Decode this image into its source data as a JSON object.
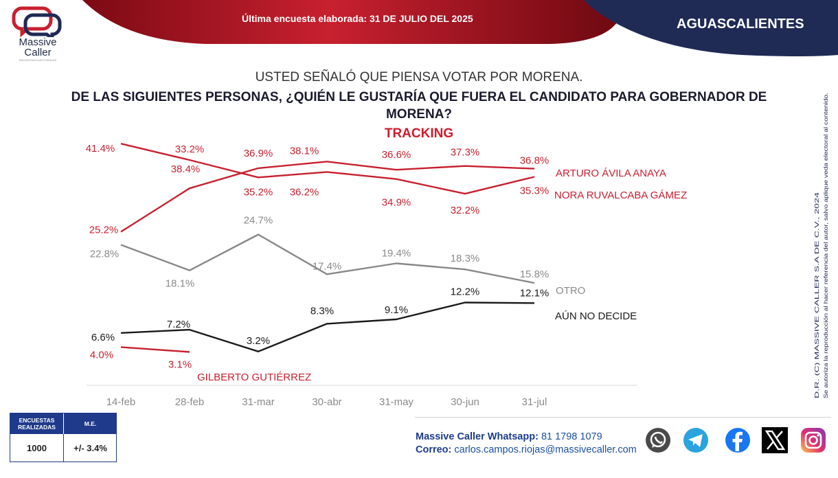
{
  "header": {
    "survey_date_label": "Última encuesta elaborada: 31 DE JULIO DEL 2025",
    "region": "AGUASCALIENTES",
    "brand": "Massive Caller",
    "brand_tagline": "ENCUESTAS ELECTORALES"
  },
  "question": {
    "line1": "USTED SEÑALÓ QUE PIENSA VOTAR POR MORENA.",
    "line2": "DE LAS SIGUIENTES PERSONAS, ¿QUIÉN LE GUSTARÍA QUE FUERA EL CANDIDATO PARA GOBERNADOR DE MORENA?",
    "subtitle": "TRACKING"
  },
  "chart_data": {
    "type": "line",
    "categories": [
      "14-feb",
      "28-feb",
      "31-mar",
      "30-abr",
      "31-may",
      "30-jun",
      "31-jul"
    ],
    "grid": false,
    "legend": "direct labels at line ends",
    "series": [
      {
        "name": "ARTURO ÁVILA ANAYA",
        "color": "#c8202f",
        "values": [
          25.2,
          33.2,
          36.9,
          38.1,
          36.6,
          37.3,
          36.8
        ],
        "labels": [
          "25.2%",
          "33.2%",
          "36.9%",
          "38.1%",
          "36.6%",
          "37.3%",
          "36.8%"
        ]
      },
      {
        "name": "NORA RUVALCABA GÁMEZ",
        "color": "#c8202f",
        "values": [
          41.4,
          38.4,
          35.2,
          36.2,
          34.9,
          32.2,
          35.3
        ],
        "labels": [
          "41.4%",
          "38.4%",
          "35.2%",
          "36.2%",
          "34.9%",
          "32.2%",
          "35.3%"
        ]
      },
      {
        "name": "OTRO",
        "color": "#888888",
        "values": [
          22.8,
          18.1,
          24.7,
          17.4,
          19.4,
          18.3,
          15.8
        ],
        "labels": [
          "22.8%",
          "18.1%",
          "24.7%",
          "17.4%",
          "19.4%",
          "18.3%",
          "15.8%"
        ]
      },
      {
        "name": "AÚN NO DECIDE",
        "color": "#1a1a1a",
        "values": [
          6.6,
          7.2,
          3.2,
          8.3,
          9.1,
          12.2,
          12.1
        ],
        "labels": [
          "6.6%",
          "7.2%",
          "3.2%",
          "8.3%",
          "9.1%",
          "12.2%",
          "12.1%"
        ]
      },
      {
        "name": "GILBERTO GUTIÉRREZ",
        "color": "#c8202f",
        "values": [
          4.0,
          3.1,
          null,
          null,
          null,
          null,
          null
        ],
        "labels": [
          "4.0%",
          "3.1%",
          null,
          null,
          null,
          null,
          null
        ]
      }
    ]
  },
  "footer": {
    "surveys_header": "ENCUESTAS REALIZADAS",
    "surveys_value": "1000",
    "me_header": "M.E.",
    "me_value": "+/- 3.4%",
    "whatsapp_label": "Massive Caller Whatsapp:",
    "whatsapp_value": "81 1798 1079",
    "email_label": "Correo:",
    "email_value": "carlos.campos.riojas@massivecaller.com",
    "social_icons": [
      "whatsapp-icon",
      "telegram-icon",
      "facebook-icon",
      "x-icon",
      "instagram-icon"
    ]
  },
  "side_note": {
    "line1": "D.R. (C) MASSIVE CALLER S.A DE C.V., 2024",
    "line2": "Se autoriza la reproducción al hacer referencia del autor, salvo aplique veda electoral al contenido."
  },
  "colors": {
    "red": "#c8202f",
    "dark_red": "#8e0f1c",
    "navy": "#1f2a55",
    "blue": "#1f3a8a"
  }
}
